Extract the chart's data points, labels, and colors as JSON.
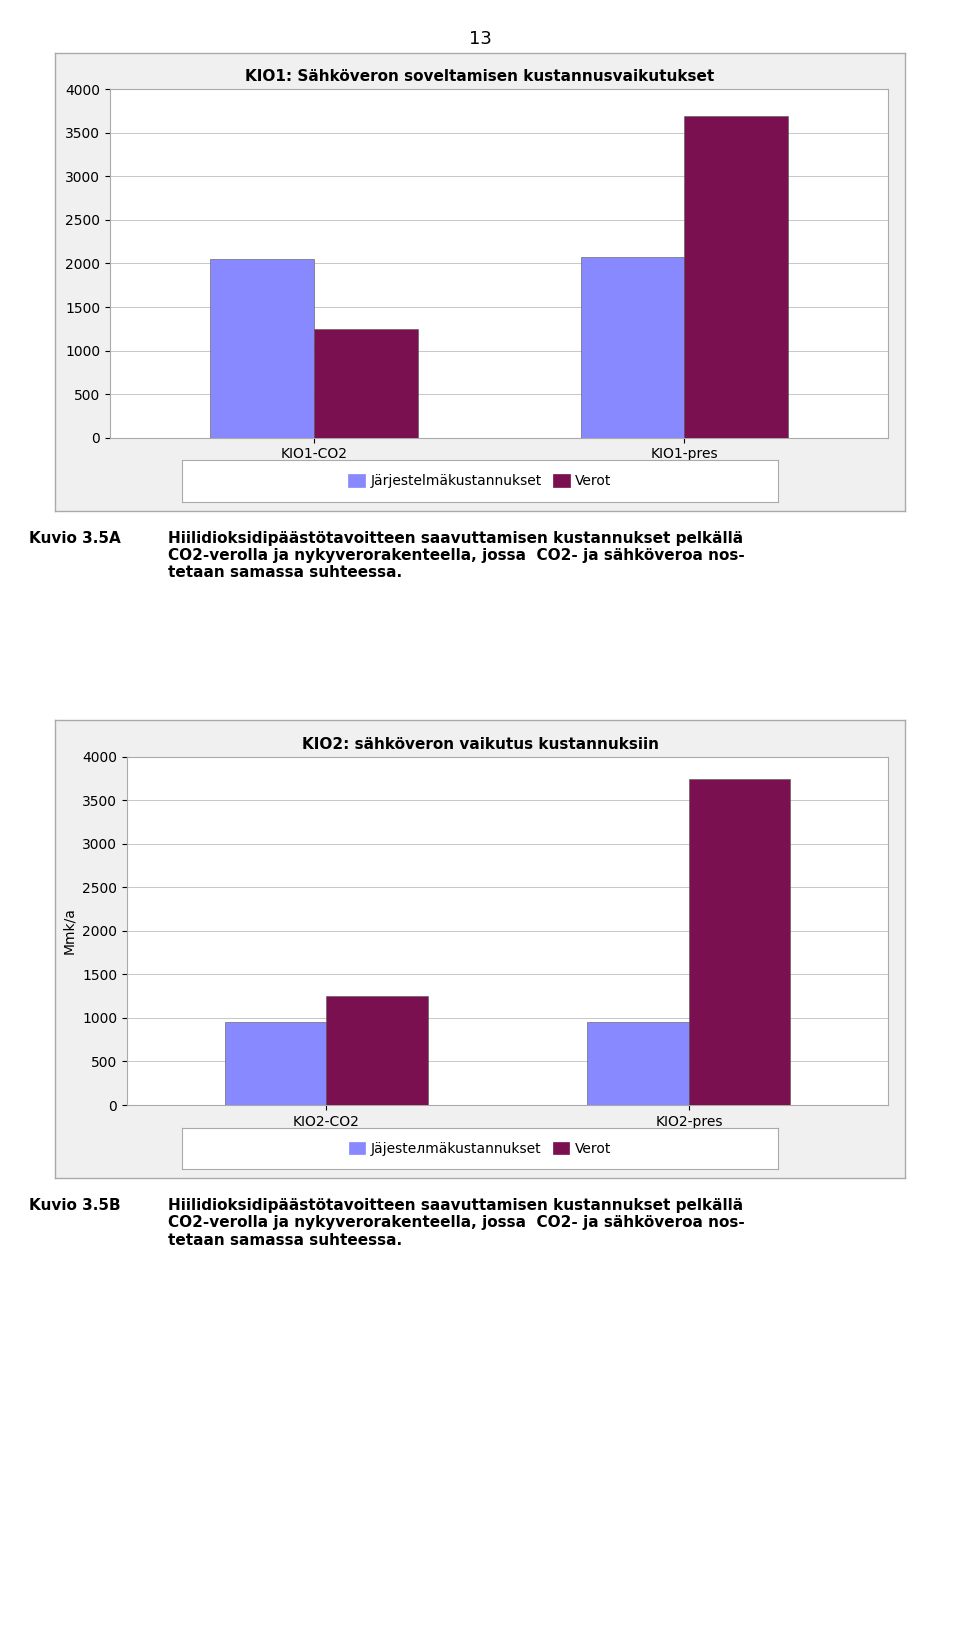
{
  "page_number": "13",
  "chart1": {
    "title": "KIO1: Sähköveron soveltamisen kustannusvaikutukset",
    "categories": [
      "KIO1-CO2",
      "KIO1-pres"
    ],
    "jk_values": [
      2050,
      2080
    ],
    "verot_values": [
      1250,
      3700
    ],
    "ylim": [
      0,
      4000
    ],
    "yticks": [
      0,
      500,
      1000,
      1500,
      2000,
      2500,
      3000,
      3500,
      4000
    ],
    "ylabel": "",
    "legend_label_blue": "Järjestelmäkustannukset",
    "legend_label_dark": "Verot"
  },
  "chart2": {
    "title": "KIO2: sähköveron vaikutus kustannuksiin",
    "categories": [
      "KIO2-CO2",
      "KIO2-pres"
    ],
    "jk_values": [
      950,
      950
    ],
    "verot_values": [
      1250,
      3750
    ],
    "ylim": [
      0,
      4000
    ],
    "yticks": [
      0,
      500,
      1000,
      1500,
      2000,
      2500,
      3000,
      3500,
      4000
    ],
    "ylabel": "Mmk/a",
    "legend_label_blue": "Jäjestелmäkustannukset",
    "legend_label_dark": "Verot"
  },
  "caption_A_label": "Kuvio 3.5A",
  "caption_A_text": "Hiilidioksidipäästötavoitteen saavuttamisen kustannukset pelkällä\nCO2-verolla ja nykyverorakenteella, jossa  CO2- ja sähköveroa nos-\ntetaan samassa suhteessa.",
  "caption_B_label": "Kuvio 3.5B",
  "caption_B_text": "Hiilidioksidipäästötavoitteen saavuttamisen kustannukset pelkällä\nCO2-verolla ja nykyverorakenteella, jossa  CO2- ja sähköveroa nos-\ntetaan samassa suhteessa.",
  "blue_color": "#8888ff",
  "dark_color": "#7a1050",
  "bg_color": "#ffffff",
  "chart_bg": "#ffffff",
  "grid_color": "#c8c8c8",
  "border_color": "#aaaaaa",
  "box_bg": "#f0f0f0"
}
